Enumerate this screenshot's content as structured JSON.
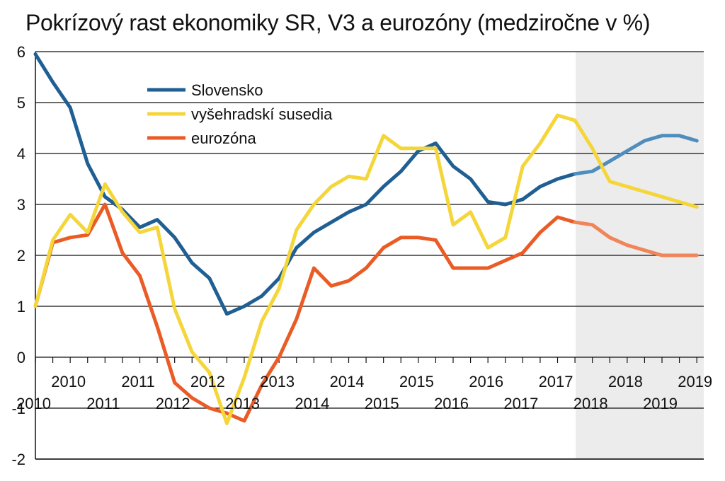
{
  "chart_data": {
    "type": "line",
    "title": "Pokrízový rast ekonomiky SR, V3 a eurozóny (medziročne v %)",
    "xlabel": "",
    "ylabel": "",
    "ylim": [
      -2,
      6
    ],
    "yticks": [
      "-2",
      "-1",
      "0",
      "1",
      "2",
      "3",
      "4",
      "5",
      "6"
    ],
    "grid": true,
    "x": [
      0,
      1,
      2,
      3,
      4,
      5,
      6,
      7,
      8,
      9,
      10,
      11,
      12,
      13,
      14,
      15,
      16,
      17,
      18,
      19,
      20,
      21,
      22,
      23,
      24,
      25,
      26,
      27,
      28,
      29,
      30,
      31,
      32,
      33,
      34,
      35,
      36,
      37,
      38
    ],
    "x_range": [
      0,
      38.4
    ],
    "forecast_from_x": 31,
    "x_labels_upper": [
      {
        "label": "2010",
        "x": 1.9
      },
      {
        "label": "2011",
        "x": 5.9
      },
      {
        "label": "2012",
        "x": 9.9
      },
      {
        "label": "2013",
        "x": 13.9
      },
      {
        "label": "2014",
        "x": 17.9
      },
      {
        "label": "2015",
        "x": 21.9
      },
      {
        "label": "2016",
        "x": 25.9
      },
      {
        "label": "2017",
        "x": 29.9
      },
      {
        "label": "2018",
        "x": 33.9
      },
      {
        "label": "2019",
        "x": 37.9
      }
    ],
    "x_labels_lower": [
      {
        "label": "2010",
        "x": -0.1
      },
      {
        "label": "2011",
        "x": 3.9
      },
      {
        "label": "2012",
        "x": 7.9
      },
      {
        "label": "2013",
        "x": 11.9
      },
      {
        "label": "2014",
        "x": 15.9
      },
      {
        "label": "2015",
        "x": 19.9
      },
      {
        "label": "2016",
        "x": 23.9
      },
      {
        "label": "2017",
        "x": 27.9
      },
      {
        "label": "2018",
        "x": 31.9
      },
      {
        "label": "2019",
        "x": 35.9
      }
    ],
    "legend_position": "upper-left",
    "series": [
      {
        "name": "Slovensko",
        "color": "#1f5f93",
        "forecast_color": "#4f8dbd",
        "values": [
          5.95,
          5.4,
          4.9,
          3.8,
          3.15,
          2.9,
          2.55,
          2.7,
          2.35,
          1.85,
          1.55,
          0.85,
          1.0,
          1.2,
          1.55,
          2.15,
          2.45,
          2.65,
          2.85,
          3.0,
          3.35,
          3.65,
          4.05,
          4.2,
          3.75,
          3.5,
          3.05,
          3.0,
          3.1,
          3.35,
          3.5,
          3.6,
          3.65,
          3.85,
          4.05,
          4.25,
          4.35,
          4.35,
          4.25
        ]
      },
      {
        "name": "vyšehradskí susedia",
        "color": "#f5d63a",
        "forecast_color": "#f5d63a",
        "values": [
          1.0,
          2.3,
          2.8,
          2.45,
          3.4,
          2.85,
          2.45,
          2.55,
          0.95,
          0.1,
          -0.3,
          -1.3,
          -0.4,
          0.7,
          1.35,
          2.5,
          3.0,
          3.35,
          3.55,
          3.5,
          4.35,
          4.1,
          4.1,
          4.1,
          2.6,
          2.85,
          2.15,
          2.35,
          3.75,
          4.2,
          4.75,
          4.65,
          4.1,
          3.45,
          3.35,
          3.25,
          3.15,
          3.05,
          2.95
        ]
      },
      {
        "name": "eurozóna",
        "color": "#ea5b25",
        "forecast_color": "#ef8559",
        "values": [
          1.0,
          2.25,
          2.35,
          2.4,
          3.0,
          2.05,
          1.6,
          0.6,
          -0.5,
          -0.8,
          -1.0,
          -1.1,
          -1.25,
          -0.55,
          0.0,
          0.75,
          1.75,
          1.4,
          1.5,
          1.75,
          2.15,
          2.35,
          2.35,
          2.3,
          1.75,
          1.75,
          1.75,
          1.9,
          2.05,
          2.45,
          2.75,
          2.65,
          2.6,
          2.35,
          2.2,
          2.1,
          2.0,
          2.0,
          2.0
        ]
      }
    ]
  }
}
